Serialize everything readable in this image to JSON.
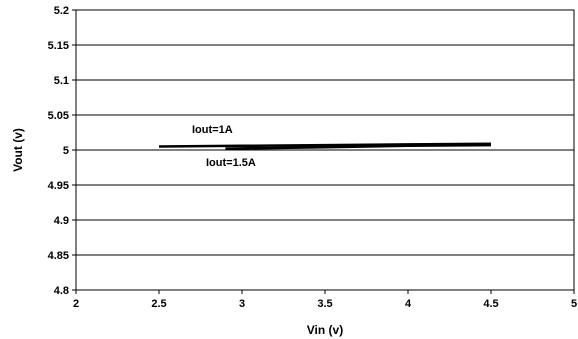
{
  "chart_data": {
    "type": "line",
    "title": "",
    "xlabel": "Vin (v)",
    "ylabel": "Vout (v)",
    "xlim": [
      2,
      5
    ],
    "ylim": [
      4.8,
      5.2
    ],
    "x_ticks": [
      "2",
      "2.5",
      "3",
      "3.5",
      "4",
      "4.5",
      "5"
    ],
    "y_ticks": [
      "4.8",
      "4.85",
      "4.9",
      "4.95",
      "5",
      "5.05",
      "5.1",
      "5.15",
      "5.2"
    ],
    "grid": {
      "horizontal": true,
      "vertical": false
    },
    "legend": "none",
    "series": [
      {
        "name": "Iout=1A",
        "x": [
          2.5,
          3.0,
          3.5,
          4.0,
          4.5
        ],
        "y": [
          5.005,
          5.006,
          5.007,
          5.008,
          5.009
        ],
        "color": "#000000"
      },
      {
        "name": "Iout=1.5A",
        "x": [
          2.9,
          3.5,
          4.0,
          4.5
        ],
        "y": [
          5.002,
          5.004,
          5.006,
          5.007
        ],
        "color": "#000000"
      }
    ],
    "annotations": [
      "Iout=1A",
      "Iout=1.5A"
    ]
  }
}
